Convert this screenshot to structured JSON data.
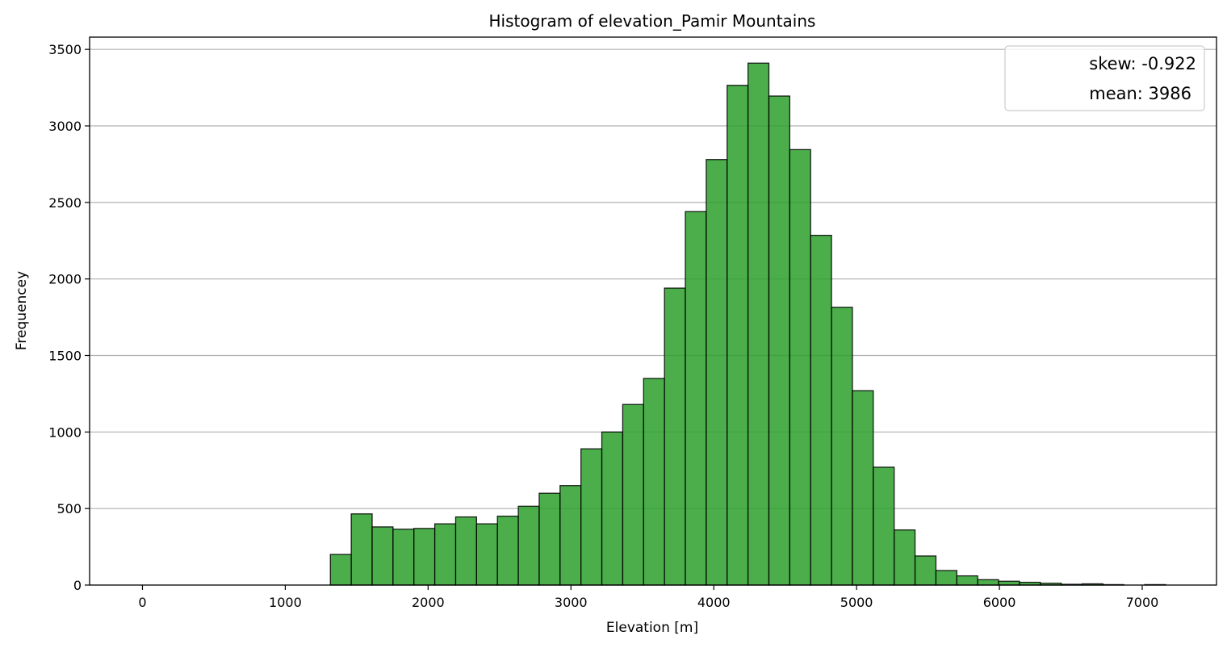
{
  "chart_data": {
    "type": "bar",
    "title": "Histogram of elevation_Pamir Mountains",
    "xlabel": "Elevation [m]",
    "ylabel": "Frequencey",
    "xlim": [
      -370,
      7520
    ],
    "ylim": [
      0,
      3580
    ],
    "xticks": [
      0,
      1000,
      2000,
      3000,
      4000,
      5000,
      6000,
      7000
    ],
    "yticks": [
      0,
      500,
      1000,
      1500,
      2000,
      2500,
      3000,
      3500
    ],
    "grid": "y",
    "bar_color": "#2ca02c",
    "bar_edge_color": "#000000",
    "legend_position": "top-right",
    "legend": [
      "skew: -0.922",
      "mean: 3986"
    ],
    "bins_start": 0,
    "bin_width": 146.2,
    "values": [
      0,
      0,
      0,
      0,
      0,
      0,
      0,
      0,
      0,
      200,
      465,
      380,
      365,
      370,
      400,
      445,
      400,
      450,
      515,
      600,
      650,
      890,
      1000,
      1180,
      1350,
      1940,
      2440,
      2780,
      3265,
      3410,
      3195,
      2845,
      2285,
      1815,
      1270,
      770,
      360,
      190,
      95,
      60,
      35,
      25,
      18,
      12,
      5,
      8,
      3,
      0,
      3
    ]
  }
}
